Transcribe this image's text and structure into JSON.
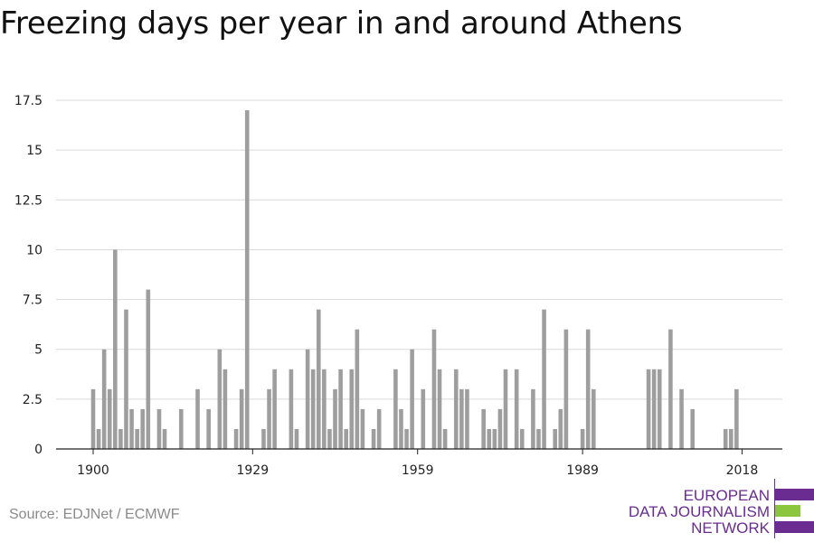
{
  "title": "Freezing days per year in and around Athens",
  "source": "Source: EDJNet / ECMWF",
  "logo": {
    "line1": "EUROPEAN",
    "line2": "DATA JOURNALISM",
    "line3": "NETWORK"
  },
  "colors": {
    "bar": "#9e9e9e",
    "grid": "#d9d9d9",
    "axis": "#222222",
    "logo_purple": "#6a2c91",
    "logo_green": "#8cc63f"
  },
  "chart_data": {
    "type": "bar",
    "title": "Freezing days per year in and around Athens",
    "xlabel": "",
    "ylabel": "",
    "x_range": [
      1900,
      2018
    ],
    "xticks": [
      1900,
      1929,
      1959,
      1989,
      2018
    ],
    "yticks": [
      0,
      2.5,
      5,
      7.5,
      10,
      12.5,
      15,
      17.5
    ],
    "ylim": [
      0,
      18
    ],
    "grid": true,
    "categories": [
      1900,
      1901,
      1902,
      1903,
      1904,
      1905,
      1906,
      1907,
      1908,
      1909,
      1910,
      1911,
      1912,
      1913,
      1914,
      1915,
      1916,
      1917,
      1918,
      1919,
      1920,
      1921,
      1922,
      1923,
      1924,
      1925,
      1926,
      1927,
      1928,
      1929,
      1930,
      1931,
      1932,
      1933,
      1934,
      1935,
      1936,
      1937,
      1938,
      1939,
      1940,
      1941,
      1942,
      1943,
      1944,
      1945,
      1946,
      1947,
      1948,
      1949,
      1950,
      1951,
      1952,
      1953,
      1954,
      1955,
      1956,
      1957,
      1958,
      1959,
      1960,
      1961,
      1962,
      1963,
      1964,
      1965,
      1966,
      1967,
      1968,
      1969,
      1970,
      1971,
      1972,
      1973,
      1974,
      1975,
      1976,
      1977,
      1978,
      1979,
      1980,
      1981,
      1982,
      1983,
      1984,
      1985,
      1986,
      1987,
      1988,
      1989,
      1990,
      1991,
      1992,
      1993,
      1994,
      1995,
      1996,
      1997,
      1998,
      1999,
      2000,
      2001,
      2002,
      2003,
      2004,
      2005,
      2006,
      2007,
      2008,
      2009,
      2010,
      2011,
      2012,
      2013,
      2014,
      2015,
      2016,
      2017,
      2018
    ],
    "values": [
      3,
      1,
      5,
      3,
      10,
      1,
      7,
      2,
      1,
      2,
      8,
      0,
      2,
      1,
      0,
      0,
      2,
      0,
      0,
      3,
      0,
      2,
      0,
      5,
      4,
      0,
      1,
      3,
      17,
      0,
      0,
      1,
      3,
      4,
      0,
      0,
      4,
      1,
      0,
      5,
      4,
      7,
      4,
      1,
      3,
      4,
      1,
      4,
      6,
      2,
      0,
      1,
      2,
      0,
      0,
      4,
      2,
      1,
      5,
      0,
      3,
      0,
      6,
      4,
      1,
      0,
      4,
      3,
      3,
      0,
      0,
      2,
      1,
      1,
      2,
      4,
      0,
      4,
      1,
      0,
      3,
      1,
      7,
      0,
      1,
      2,
      6,
      0,
      0,
      1,
      6,
      3,
      0,
      0,
      0,
      0,
      0,
      0,
      0,
      0,
      0,
      4,
      4,
      4,
      0,
      6,
      0,
      3,
      0,
      2,
      0,
      0,
      0,
      0,
      0,
      1,
      1,
      3,
      0
    ]
  }
}
